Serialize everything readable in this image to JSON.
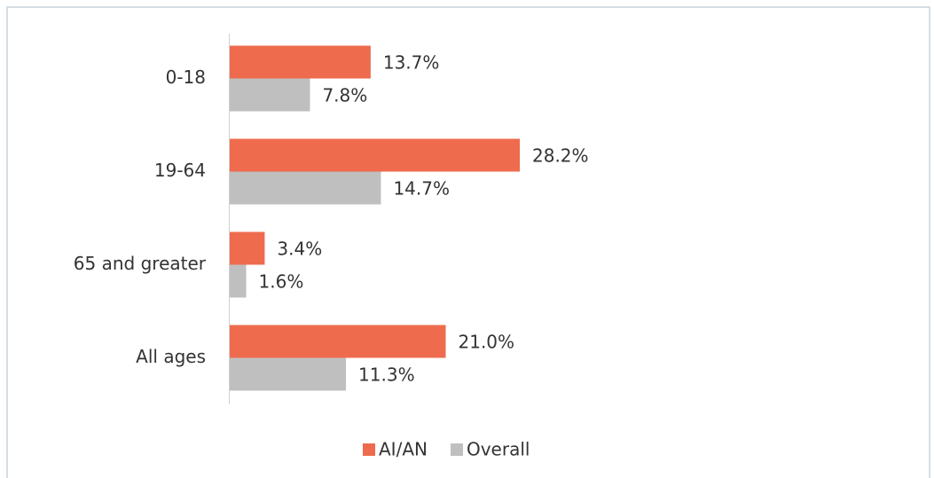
{
  "chart_data": {
    "type": "bar",
    "orientation": "horizontal",
    "categories": [
      "0-18",
      "19-64",
      "65 and greater",
      "All ages"
    ],
    "series": [
      {
        "name": "AI/AN",
        "color": "#ee6b4d",
        "values": [
          13.7,
          28.2,
          3.4,
          21.0
        ],
        "value_labels": [
          "13.7%",
          "28.2%",
          "3.4%",
          "21.0%"
        ]
      },
      {
        "name": "Overall",
        "color": "#bfbfbf",
        "values": [
          7.8,
          14.7,
          1.6,
          11.3
        ],
        "value_labels": [
          "7.8%",
          "14.7%",
          "1.6%",
          "11.3%"
        ]
      }
    ],
    "legend": "bottom"
  }
}
